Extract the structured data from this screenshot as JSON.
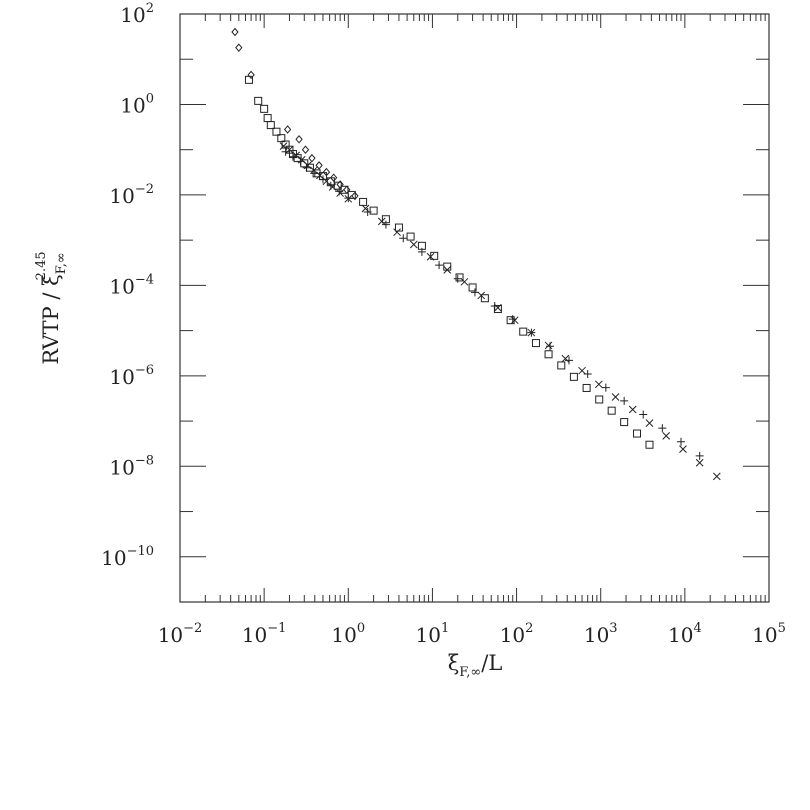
{
  "chart_data": {
    "type": "scatter",
    "x_scale": "log",
    "y_scale": "log",
    "xlim": [
      0.01,
      100000
    ],
    "ylim": [
      1e-11,
      100
    ],
    "x_ticks": [
      {
        "base": "10",
        "exp": "−2",
        "value": 0.01
      },
      {
        "base": "10",
        "exp": "−1",
        "value": 0.1
      },
      {
        "base": "10",
        "exp": "0",
        "value": 1
      },
      {
        "base": "10",
        "exp": "1",
        "value": 10
      },
      {
        "base": "10",
        "exp": "2",
        "value": 100
      },
      {
        "base": "10",
        "exp": "3",
        "value": 1000
      },
      {
        "base": "10",
        "exp": "4",
        "value": 10000
      },
      {
        "base": "10",
        "exp": "5",
        "value": 100000
      }
    ],
    "y_ticks": [
      {
        "base": "10",
        "exp": "2",
        "value": 100
      },
      {
        "base": "10",
        "exp": "0",
        "value": 1
      },
      {
        "base": "10",
        "exp": "−2",
        "value": 0.01
      },
      {
        "base": "10",
        "exp": "−4",
        "value": 0.0001
      },
      {
        "base": "10",
        "exp": "−6",
        "value": 1e-06
      },
      {
        "base": "10",
        "exp": "−8",
        "value": 1e-08
      },
      {
        "base": "10",
        "exp": "−10",
        "value": 1e-10
      }
    ],
    "xlabel": {
      "main": "ξ",
      "sub": "F,∞",
      "tail": "/L"
    },
    "ylabel": {
      "head": "RVTP  /  ξ",
      "sub": "F,∞",
      "sup": "2.45"
    },
    "series": [
      {
        "marker": "diamond",
        "points": [
          [
            0.045,
            40
          ],
          [
            0.05,
            18
          ],
          [
            0.07,
            4.5
          ],
          [
            0.19,
            0.28
          ],
          [
            0.26,
            0.17
          ],
          [
            0.31,
            0.1
          ],
          [
            0.37,
            0.065
          ],
          [
            0.45,
            0.045
          ],
          [
            0.55,
            0.032
          ],
          [
            0.67,
            0.024
          ],
          [
            0.8,
            0.017
          ],
          [
            0.96,
            0.013
          ],
          [
            1.2,
            0.0095
          ]
        ]
      },
      {
        "marker": "square",
        "points": [
          [
            0.066,
            3.5
          ],
          [
            0.085,
            1.2
          ],
          [
            0.1,
            0.8
          ],
          [
            0.11,
            0.5
          ],
          [
            0.12,
            0.35
          ],
          [
            0.14,
            0.25
          ],
          [
            0.16,
            0.18
          ],
          [
            0.18,
            0.13
          ],
          [
            0.2,
            0.1
          ],
          [
            0.22,
            0.08
          ],
          [
            0.25,
            0.065
          ],
          [
            0.3,
            0.05
          ],
          [
            0.35,
            0.04
          ],
          [
            0.42,
            0.03
          ],
          [
            0.5,
            0.026
          ],
          [
            0.62,
            0.02
          ],
          [
            0.75,
            0.016
          ],
          [
            0.9,
            0.013
          ],
          [
            1.1,
            0.01
          ],
          [
            1.5,
            0.007
          ],
          [
            2,
            0.0045
          ],
          [
            2.8,
            0.0029
          ],
          [
            4,
            0.0019
          ],
          [
            5.5,
            0.0012
          ],
          [
            7.5,
            0.00075
          ],
          [
            10.5,
            0.00045
          ],
          [
            15,
            0.00026
          ],
          [
            21,
            0.00015
          ],
          [
            30,
            9e-05
          ],
          [
            42,
            5.2e-05
          ],
          [
            60,
            3e-05
          ],
          [
            85,
            1.7e-05
          ],
          [
            120,
            9.5e-06
          ],
          [
            170,
            5.3e-06
          ],
          [
            240,
            3e-06
          ],
          [
            340,
            1.7e-06
          ],
          [
            480,
            9.5e-07
          ],
          [
            680,
            5.4e-07
          ],
          [
            960,
            3e-07
          ],
          [
            1350,
            1.7e-07
          ],
          [
            1900,
            9.5e-08
          ],
          [
            2700,
            5.3e-08
          ],
          [
            3800,
            3e-08
          ]
        ]
      },
      {
        "marker": "cross",
        "points": [
          [
            0.17,
            0.12
          ],
          [
            0.2,
            0.1
          ],
          [
            0.24,
            0.075
          ],
          [
            0.28,
            0.06
          ],
          [
            0.33,
            0.045
          ],
          [
            0.39,
            0.035
          ],
          [
            0.46,
            0.027
          ],
          [
            0.55,
            0.02
          ],
          [
            0.65,
            0.015
          ],
          [
            0.8,
            0.011
          ],
          [
            1,
            0.0082
          ],
          [
            1.6,
            0.005
          ],
          [
            2.5,
            0.0026
          ],
          [
            3.8,
            0.0015
          ],
          [
            6,
            0.0008
          ],
          [
            9.5,
            0.00043
          ],
          [
            15,
            0.00022
          ],
          [
            24,
            0.00012
          ],
          [
            38,
            6e-05
          ],
          [
            60,
            3.2e-05
          ],
          [
            95,
            1.7e-05
          ],
          [
            150,
            9e-06
          ],
          [
            240,
            4.7e-06
          ],
          [
            380,
            2.4e-06
          ],
          [
            600,
            1.3e-06
          ],
          [
            950,
            6.5e-07
          ],
          [
            1500,
            3.4e-07
          ],
          [
            2400,
            1.8e-07
          ],
          [
            3800,
            9e-08
          ],
          [
            6000,
            4.7e-08
          ],
          [
            9500,
            2.4e-08
          ],
          [
            15000,
            1.2e-08
          ],
          [
            24000,
            6e-09
          ]
        ]
      },
      {
        "marker": "plus",
        "points": [
          [
            0.18,
            0.09
          ],
          [
            0.22,
            0.07
          ],
          [
            0.27,
            0.055
          ],
          [
            0.32,
            0.04
          ],
          [
            0.4,
            0.03
          ],
          [
            0.5,
            0.022
          ],
          [
            0.62,
            0.016
          ],
          [
            0.78,
            0.012
          ],
          [
            1,
            0.0085
          ],
          [
            1.7,
            0.0042
          ],
          [
            2.8,
            0.0022
          ],
          [
            4.5,
            0.0011
          ],
          [
            7.5,
            0.00055
          ],
          [
            12,
            0.00028
          ],
          [
            20,
            0.00014
          ],
          [
            32,
            7e-05
          ],
          [
            55,
            3.5e-05
          ],
          [
            90,
            1.8e-05
          ],
          [
            150,
            9e-06
          ],
          [
            250,
            4.5e-06
          ],
          [
            420,
            2.2e-06
          ],
          [
            700,
            1.1e-06
          ],
          [
            1150,
            5.5e-07
          ],
          [
            1900,
            2.8e-07
          ],
          [
            3200,
            1.4e-07
          ],
          [
            5400,
            7e-08
          ],
          [
            9000,
            3.5e-08
          ],
          [
            15000,
            1.7e-08
          ]
        ]
      }
    ]
  }
}
